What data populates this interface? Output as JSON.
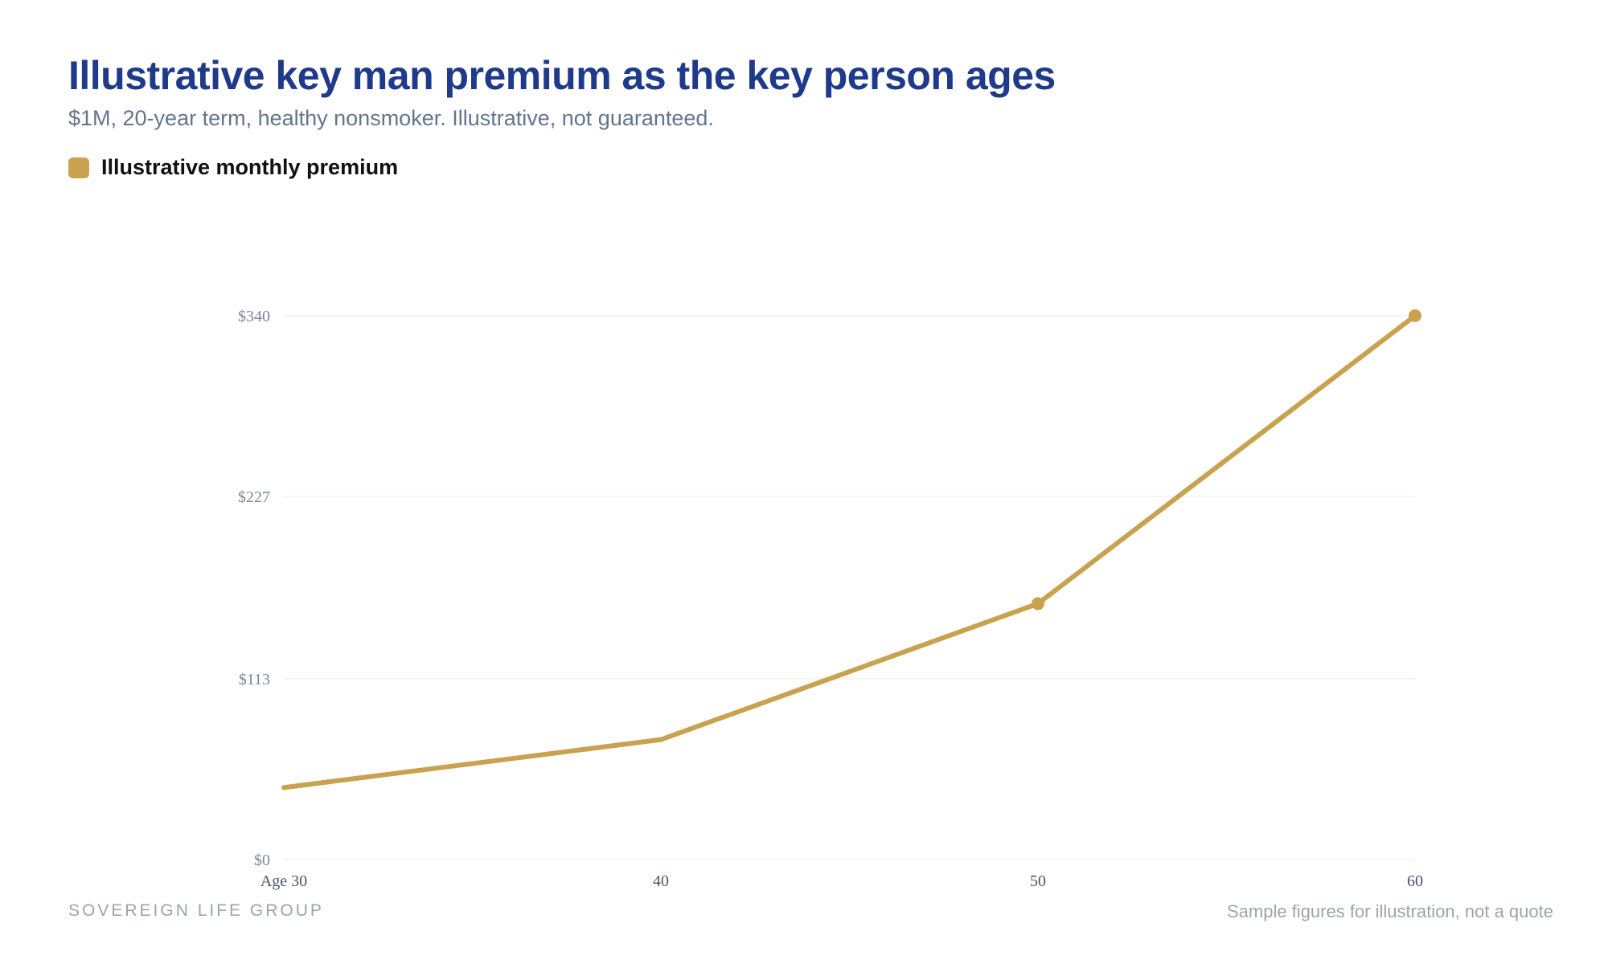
{
  "header": {
    "title": "Illustrative key man premium as the key person ages",
    "subtitle": "$1M, 20-year term, healthy nonsmoker. Illustrative, not guaranteed."
  },
  "legend": {
    "label": "Illustrative monthly premium"
  },
  "footer": {
    "brand": "SOVEREIGN LIFE GROUP",
    "note": "Sample figures for illustration, not a quote"
  },
  "colors": {
    "title": "#1f3a8a",
    "series": "#c8a24f",
    "grid": "#eef0f3",
    "axis_text": "#7a8699",
    "x_tick_text": "#475569"
  },
  "chart_data": {
    "type": "line",
    "title": "Illustrative key man premium as the key person ages",
    "subtitle": "$1M, 20-year term, healthy nonsmoker. Illustrative, not guaranteed.",
    "categories": [
      "Age 30",
      "40",
      "50",
      "60"
    ],
    "series": [
      {
        "name": "Illustrative monthly premium",
        "values": [
          45,
          75,
          160,
          340
        ],
        "markers": [
          false,
          false,
          true,
          true
        ]
      }
    ],
    "y_ticks": [
      "$0",
      "$113",
      "$227",
      "$340"
    ],
    "y_tick_values": [
      0,
      113,
      227,
      340
    ],
    "ylim": [
      0,
      340
    ],
    "grid": true,
    "legend_position": "top-left"
  }
}
